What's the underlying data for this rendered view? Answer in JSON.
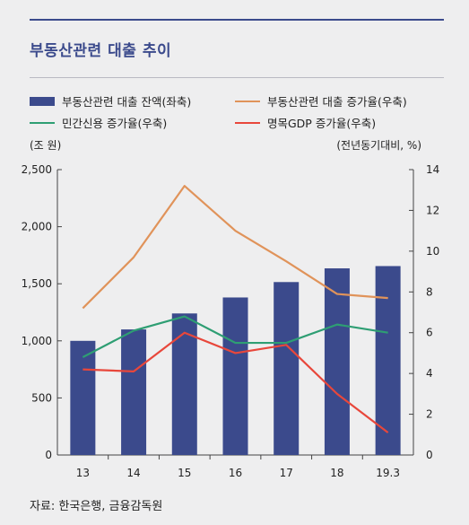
{
  "header": {
    "title": "부동산관련 대출 추이"
  },
  "legend": {
    "bar": "부동산관련 대출 잔액(좌축)",
    "growth": "부동산관련 대출 증가율(우축)",
    "private": "민간신용 증가율(우축)",
    "gdp": "명목GDP 증가율(우축)"
  },
  "units": {
    "left": "(조 원)",
    "right": "(전년동기대비, %)"
  },
  "source": "자료: 한국은행, 금융감독원",
  "colors": {
    "bar": "#3b4a8c",
    "growth": "#e0935a",
    "private": "#2e9e73",
    "gdp": "#e8473b"
  },
  "chart_data": {
    "type": "bar",
    "categories": [
      "13",
      "14",
      "15",
      "16",
      "17",
      "18",
      "19.3"
    ],
    "series": [
      {
        "name": "부동산관련 대출 잔액(좌축)",
        "type": "bar",
        "axis": "left",
        "values": [
          1000,
          1100,
          1240,
          1380,
          1515,
          1635,
          1655
        ]
      },
      {
        "name": "부동산관련 대출 증가율(우축)",
        "type": "line",
        "axis": "right",
        "values": [
          7.2,
          9.7,
          13.2,
          11.0,
          9.5,
          7.9,
          7.7
        ]
      },
      {
        "name": "민간신용 증가율(우축)",
        "type": "line",
        "axis": "right",
        "values": [
          4.8,
          6.1,
          6.8,
          5.5,
          5.5,
          6.4,
          6.0
        ]
      },
      {
        "name": "명목GDP 증가율(우축)",
        "type": "line",
        "axis": "right",
        "values": [
          4.2,
          4.1,
          6.0,
          5.0,
          5.4,
          3.0,
          1.1
        ]
      }
    ],
    "left_axis": {
      "min": 0,
      "max": 2500,
      "ticks": [
        0,
        500,
        1000,
        1500,
        2000,
        2500
      ],
      "tick_labels": [
        "0",
        "500",
        "1,000",
        "1,500",
        "2,000",
        "2,500"
      ]
    },
    "right_axis": {
      "min": 0,
      "max": 14,
      "ticks": [
        0,
        2,
        4,
        6,
        8,
        10,
        12,
        14
      ]
    },
    "grid": false,
    "legend_position": "top"
  }
}
